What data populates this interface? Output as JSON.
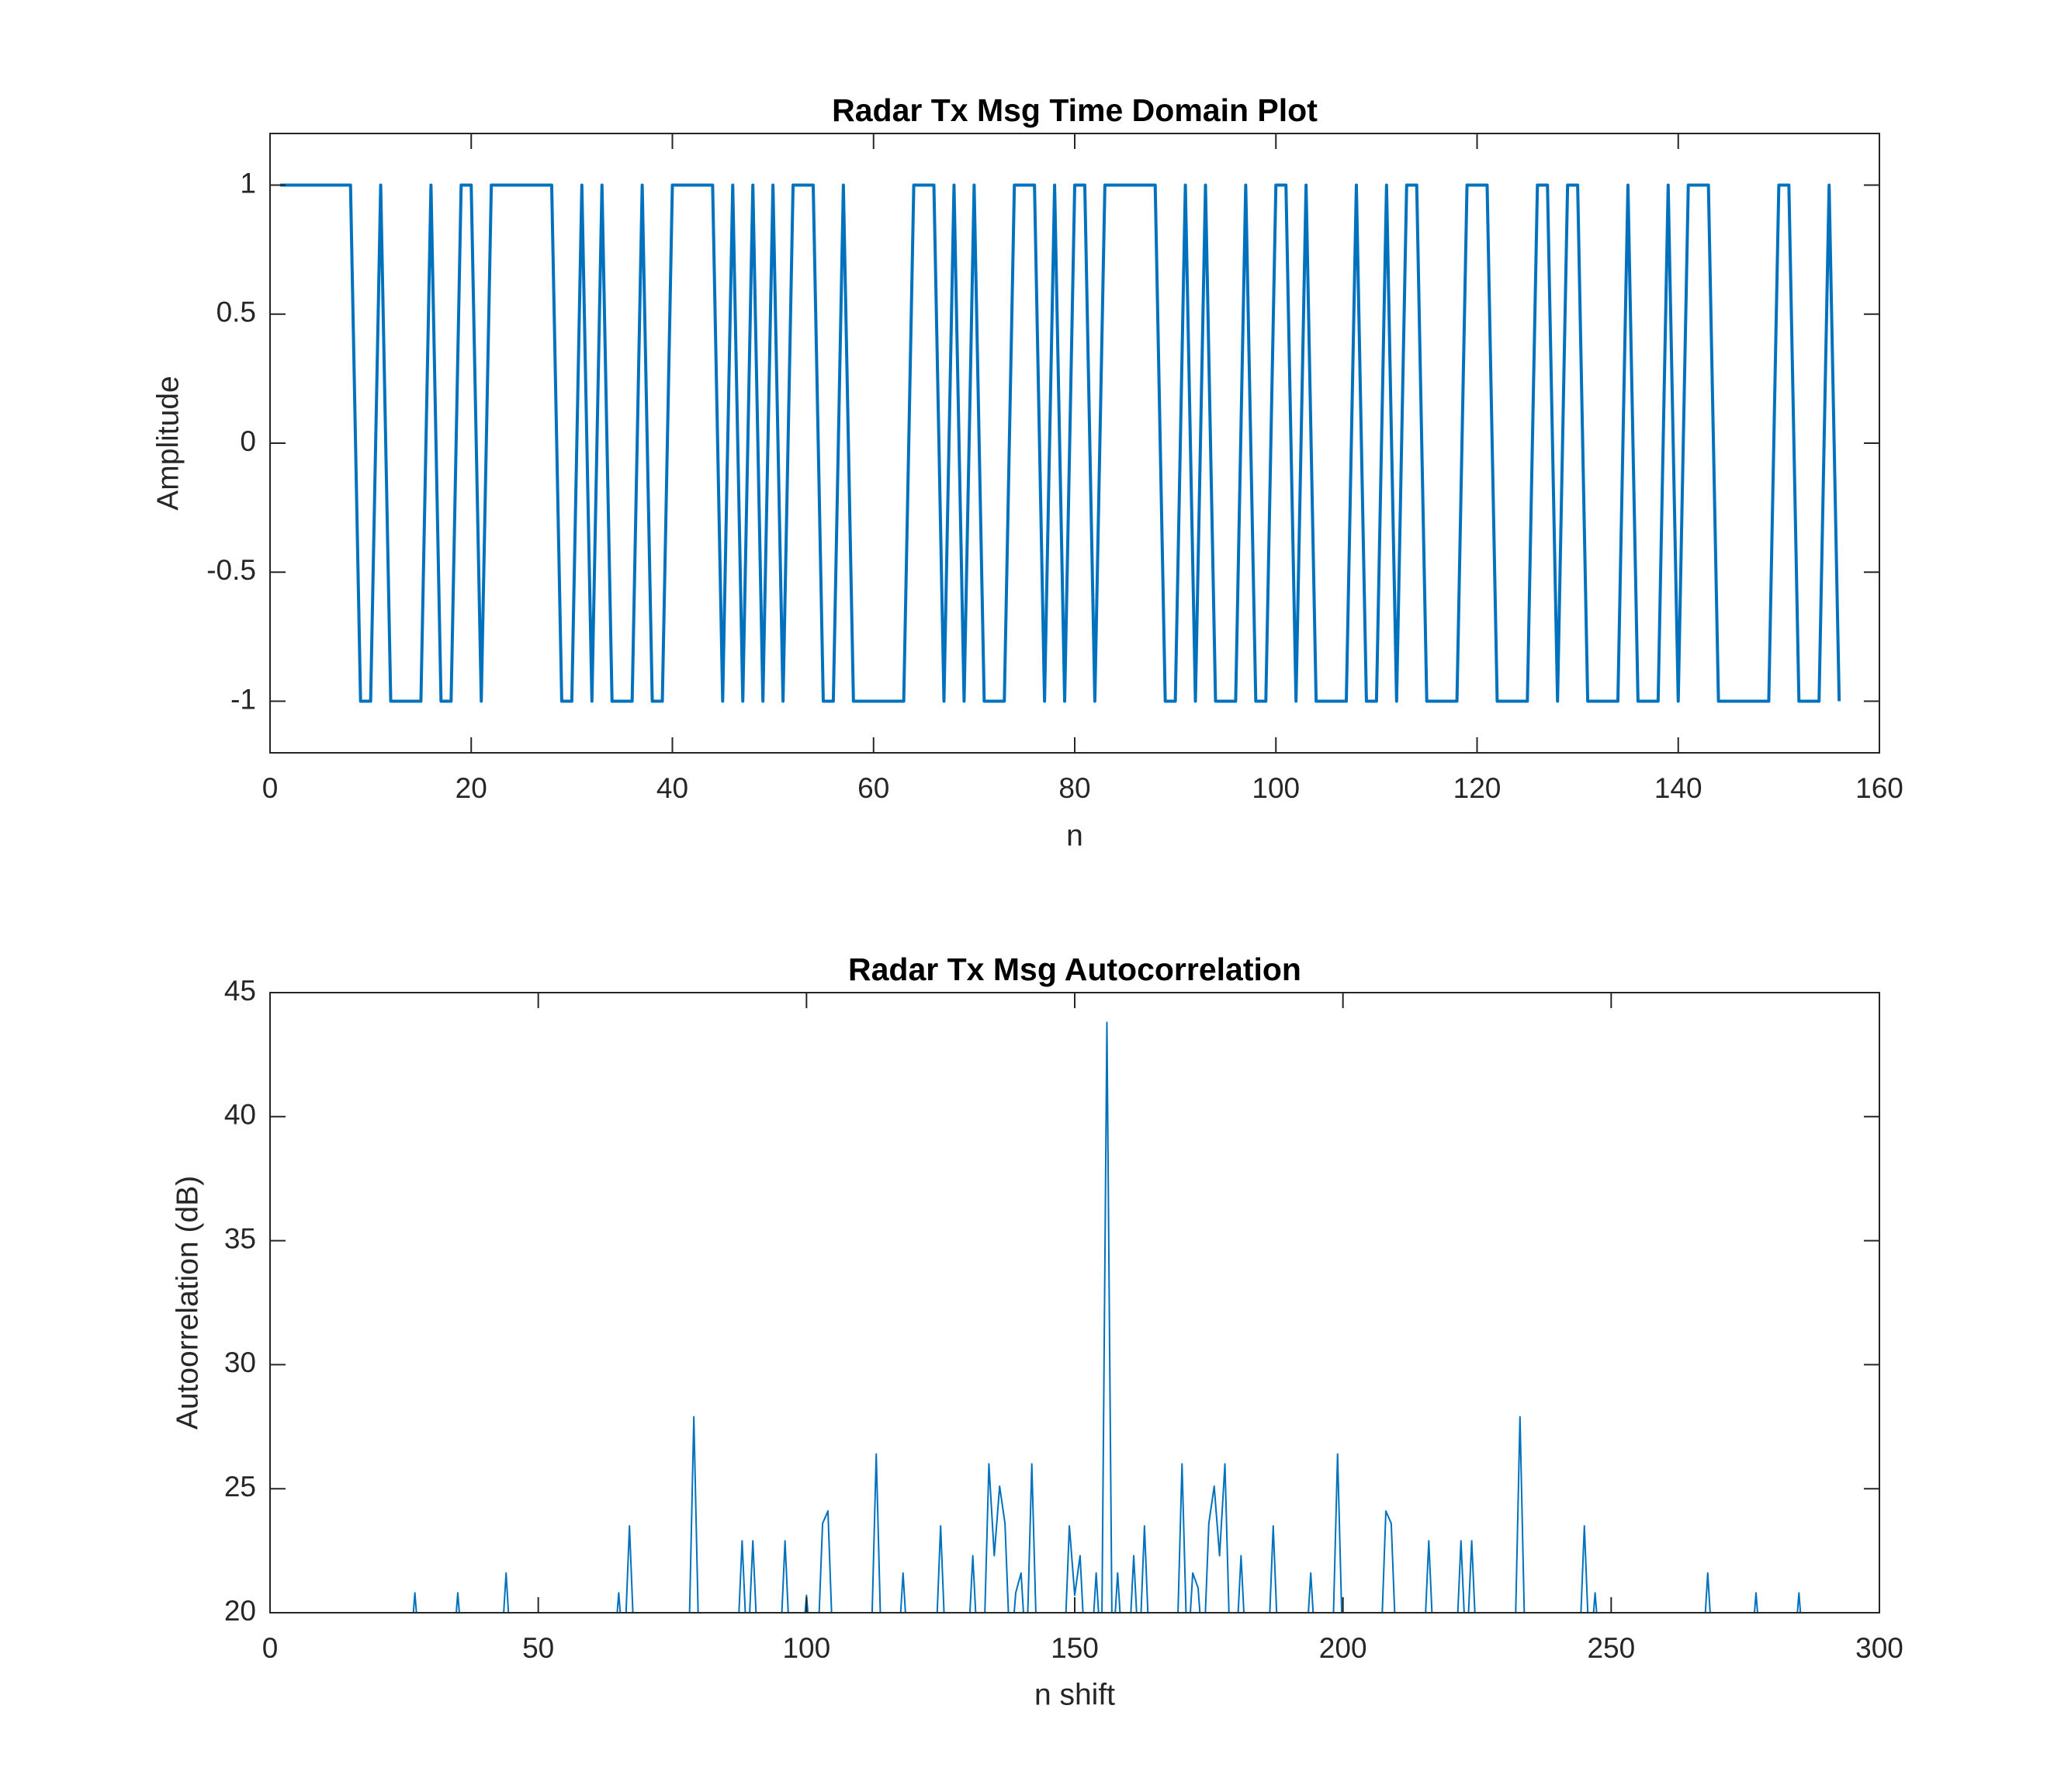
{
  "chart_data": [
    {
      "type": "line",
      "title": "Radar Tx Msg Time Domain Plot",
      "xlabel": "n",
      "ylabel": "Amplitude",
      "xlim": [
        0,
        160
      ],
      "ylim": [
        -1.2,
        1.2
      ],
      "xticks": [
        0,
        20,
        40,
        60,
        80,
        100,
        120,
        140,
        160
      ],
      "yticks": [
        -1,
        -0.5,
        0,
        0.5,
        1
      ],
      "series": [
        {
          "color": "#0072bd",
          "x": [
            1,
            2,
            3,
            4,
            5,
            6,
            7,
            8,
            9,
            10,
            11,
            12,
            13,
            14,
            15,
            16,
            17,
            18,
            19,
            20,
            21,
            22,
            23,
            24,
            25,
            26,
            27,
            28,
            29,
            30,
            31,
            32,
            33,
            34,
            35,
            36,
            37,
            38,
            39,
            40,
            41,
            42,
            43,
            44,
            45,
            46,
            47,
            48,
            49,
            50,
            51,
            52,
            53,
            54,
            55,
            56,
            57,
            58,
            59,
            60,
            61,
            62,
            63,
            64,
            65,
            66,
            67,
            68,
            69,
            70,
            71,
            72,
            73,
            74,
            75,
            76,
            77,
            78,
            79,
            80,
            81,
            82,
            83,
            84,
            85,
            86,
            87,
            88,
            89,
            90,
            91,
            92,
            93,
            94,
            95,
            96,
            97,
            98,
            99,
            100,
            101,
            102,
            103,
            104,
            105,
            106,
            107,
            108,
            109,
            110,
            111,
            112,
            113,
            114,
            115,
            116,
            117,
            118,
            119,
            120,
            121,
            122,
            123,
            124,
            125,
            126,
            127,
            128,
            129,
            130,
            131,
            132,
            133,
            134,
            135,
            136,
            137,
            138,
            139,
            140,
            141,
            142,
            143,
            144,
            145,
            146,
            147,
            148,
            149,
            150,
            151,
            152,
            153,
            154,
            155,
            156
          ],
          "values": [
            1,
            1,
            1,
            1,
            1,
            1,
            1,
            1,
            -1,
            -1,
            1,
            -1,
            -1,
            -1,
            -1,
            1,
            -1,
            -1,
            1,
            1,
            -1,
            1,
            1,
            1,
            1,
            1,
            1,
            1,
            -1,
            -1,
            1,
            -1,
            1,
            -1,
            -1,
            -1,
            1,
            -1,
            -1,
            1,
            1,
            1,
            1,
            1,
            -1,
            1,
            -1,
            1,
            -1,
            1,
            -1,
            1,
            1,
            1,
            -1,
            -1,
            1,
            -1,
            -1,
            -1,
            -1,
            -1,
            -1,
            1,
            1,
            1,
            -1,
            1,
            -1,
            1,
            -1,
            -1,
            -1,
            1,
            1,
            1,
            -1,
            1,
            -1,
            1,
            1,
            -1,
            1,
            1,
            1,
            1,
            1,
            1,
            -1,
            -1,
            1,
            -1,
            1,
            -1,
            -1,
            -1,
            1,
            -1,
            -1,
            1,
            1,
            -1,
            1,
            -1,
            -1,
            -1,
            -1,
            1,
            -1,
            -1,
            1,
            -1,
            1,
            1,
            -1,
            -1,
            -1,
            -1,
            1,
            1,
            1,
            -1,
            -1,
            -1,
            -1,
            1,
            1,
            -1,
            1,
            1,
            -1,
            -1,
            -1,
            -1,
            1,
            -1,
            -1,
            -1,
            1,
            -1,
            1,
            1,
            1,
            -1,
            -1,
            -1,
            -1,
            -1,
            -1,
            1,
            1,
            -1,
            -1,
            -1,
            1,
            -1
          ]
        }
      ]
    },
    {
      "type": "line",
      "title": "Radar Tx Msg Autocorrelation",
      "xlabel": "n shift",
      "ylabel": "Autoorrelation (dB)",
      "xlim": [
        0,
        300
      ],
      "ylim": [
        20,
        45
      ],
      "xticks": [
        0,
        50,
        100,
        150,
        200,
        250,
        300
      ],
      "yticks": [
        20,
        25,
        30,
        35,
        40,
        45
      ],
      "series": [
        {
          "color": "#0072bd",
          "x": [
            1,
            26,
            27,
            28,
            34,
            35,
            36,
            43,
            44,
            45,
            64,
            65,
            66,
            67,
            68,
            78,
            79,
            80,
            87,
            88,
            89,
            90,
            91,
            95,
            96,
            97,
            99,
            100,
            101,
            102,
            103,
            104,
            105,
            112,
            113,
            114,
            117,
            118,
            119,
            124,
            125,
            126,
            130,
            131,
            132,
            133,
            134,
            135,
            136,
            137,
            138,
            139,
            140,
            141,
            142,
            143,
            148,
            149,
            150,
            151,
            152,
            153,
            154,
            155,
            156,
            157,
            158,
            159,
            160,
            161,
            162,
            163,
            164,
            169,
            170,
            171,
            172,
            173,
            174,
            175,
            176,
            177,
            178,
            179,
            180,
            181,
            182,
            186,
            187,
            188,
            193,
            194,
            195,
            198,
            199,
            200,
            207,
            208,
            209,
            210,
            215,
            216,
            217,
            221,
            222,
            223,
            224,
            225,
            232,
            233,
            234,
            244,
            245,
            246,
            247,
            248,
            267,
            268,
            269,
            276,
            277,
            278,
            284,
            285,
            286,
            311
          ],
          "values": [
            18,
            18,
            20.8,
            18,
            18,
            20.8,
            18,
            18,
            21.6,
            18,
            18,
            20.8,
            18,
            23.5,
            18,
            18,
            27.9,
            18,
            18,
            22.9,
            18,
            22.9,
            18,
            18,
            22.9,
            18,
            18,
            20.7,
            18,
            18,
            23.6,
            24.1,
            18,
            18,
            26.4,
            18,
            18,
            21.6,
            18,
            18,
            23.5,
            18,
            18,
            22.3,
            18,
            18,
            26.0,
            22.3,
            25.1,
            23.6,
            18,
            20.8,
            21.6,
            18,
            26.0,
            18,
            18,
            23.5,
            20.7,
            22.3,
            18,
            18,
            21.6,
            18,
            43.8,
            18,
            21.6,
            18,
            18,
            22.3,
            18,
            23.5,
            18,
            18,
            26.0,
            18,
            21.6,
            21.0,
            18,
            23.6,
            25.1,
            22.3,
            26.0,
            18,
            18,
            22.3,
            18,
            18,
            23.5,
            18,
            18,
            21.6,
            18,
            18,
            26.4,
            18,
            18,
            24.1,
            23.6,
            18,
            18,
            22.9,
            18,
            18,
            22.9,
            18,
            22.9,
            18,
            18,
            27.9,
            18,
            18,
            23.5,
            18,
            20.8,
            18,
            18,
            21.6,
            18,
            18,
            20.8,
            18,
            18,
            20.8,
            18,
            18
          ]
        }
      ]
    }
  ]
}
